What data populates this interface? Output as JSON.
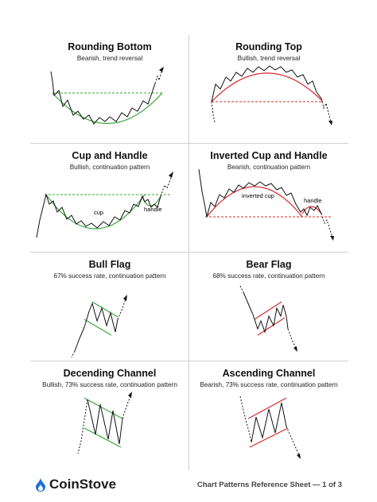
{
  "patterns": [
    {
      "title": "Rounding Bottom",
      "subtitle": "Bearish, trend reversal"
    },
    {
      "title": "Rounding Top",
      "subtitle": "Bullish, trend reversal"
    },
    {
      "title": "Cup and Handle",
      "subtitle": "Bullish, continuation pattern",
      "labels": {
        "cup": "cup",
        "handle": "handle"
      }
    },
    {
      "title": "Inverted Cup and Handle",
      "subtitle": "Bearish, continuation pattern",
      "labels": {
        "cup": "inverted cup",
        "handle": "handle"
      }
    },
    {
      "title": "Bull Flag",
      "subtitle": "67% success rate, continuation pattern"
    },
    {
      "title": "Bear Flag",
      "subtitle": "68% success rate, continuation pattern"
    },
    {
      "title": "Decending Channel",
      "subtitle": "Bullish, 73% success rate, continuation pattern"
    },
    {
      "title": "Ascending Channel",
      "subtitle": "Bearish, 73% success rate, continuation pattern"
    }
  ],
  "footer": {
    "brand": "CoinStove",
    "note": "Chart Patterns Reference Sheet — 1 of 3"
  },
  "colors": {
    "green": "#3aa83a",
    "red": "#d62b2b",
    "text": "#111111",
    "divider": "#d0d0d0",
    "brand_blue": "#1f6fd1"
  },
  "icons": {
    "logo": "flame-drop-icon"
  }
}
